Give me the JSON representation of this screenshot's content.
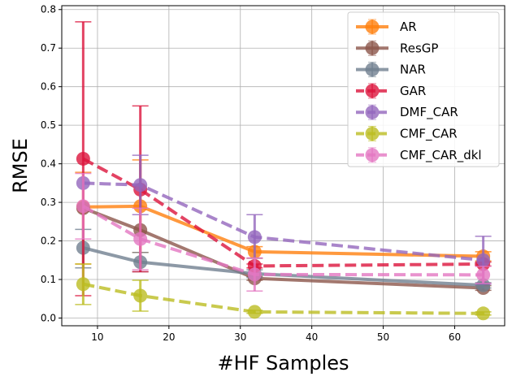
{
  "chart_data": {
    "type": "line",
    "xlabel": "#HF Samples",
    "ylabel": "RMSE",
    "xlim": [
      5,
      67
    ],
    "ylim": [
      -0.02,
      0.81
    ],
    "xticks": [
      "10",
      "20",
      "30",
      "40",
      "50",
      "60"
    ],
    "yticks": [
      "0.0",
      "0.1",
      "0.2",
      "0.3",
      "0.4",
      "0.5",
      "0.6",
      "0.7",
      "0.8"
    ],
    "grid": true,
    "legend_position": "top-right",
    "x": [
      8,
      16,
      32,
      64
    ],
    "series": [
      {
        "name": "AR",
        "color": "#ff7f0e",
        "dash": false,
        "values": [
          0.288,
          0.29,
          0.172,
          0.16
        ],
        "err_low": [
          0.14,
          0.17,
          0.155,
          0.148
        ],
        "err_high": [
          0.378,
          0.41,
          0.185,
          0.172
        ]
      },
      {
        "name": "ResGP",
        "color": "#8c564b",
        "dash": false,
        "values": [
          0.285,
          0.228,
          0.103,
          0.078
        ],
        "err_low": [
          0.285,
          0.228,
          0.098,
          0.072
        ],
        "err_high": [
          0.285,
          0.228,
          0.108,
          0.084
        ]
      },
      {
        "name": "NAR",
        "color": "#708090",
        "dash": false,
        "values": [
          0.182,
          0.145,
          0.115,
          0.085
        ],
        "err_low": [
          0.13,
          0.12,
          0.105,
          0.078
        ],
        "err_high": [
          0.23,
          0.17,
          0.125,
          0.092
        ]
      },
      {
        "name": "GAR",
        "color": "#dc143c",
        "dash": true,
        "values": [
          0.413,
          0.333,
          0.135,
          0.14
        ],
        "err_low": [
          0.058,
          0.12,
          0.13,
          0.135
        ],
        "err_high": [
          0.768,
          0.55,
          0.14,
          0.145
        ]
      },
      {
        "name": "DMF_CAR",
        "color": "#9467bd",
        "dash": true,
        "values": [
          0.35,
          0.345,
          0.21,
          0.15
        ],
        "err_low": [
          0.35,
          0.268,
          0.155,
          0.088
        ],
        "err_high": [
          0.35,
          0.422,
          0.268,
          0.212
        ]
      },
      {
        "name": "CMF_CAR",
        "color": "#bcbd22",
        "dash": true,
        "values": [
          0.088,
          0.058,
          0.016,
          0.012
        ],
        "err_low": [
          0.035,
          0.018,
          0.012,
          0.008
        ],
        "err_high": [
          0.14,
          0.098,
          0.02,
          0.016
        ]
      },
      {
        "name": "CMF_CAR_dkl",
        "color": "#e377c2",
        "dash": true,
        "values": [
          0.29,
          0.205,
          0.113,
          0.112
        ],
        "err_low": [
          0.205,
          0.125,
          0.07,
          0.09
        ],
        "err_high": [
          0.375,
          0.285,
          0.156,
          0.134
        ]
      }
    ]
  }
}
